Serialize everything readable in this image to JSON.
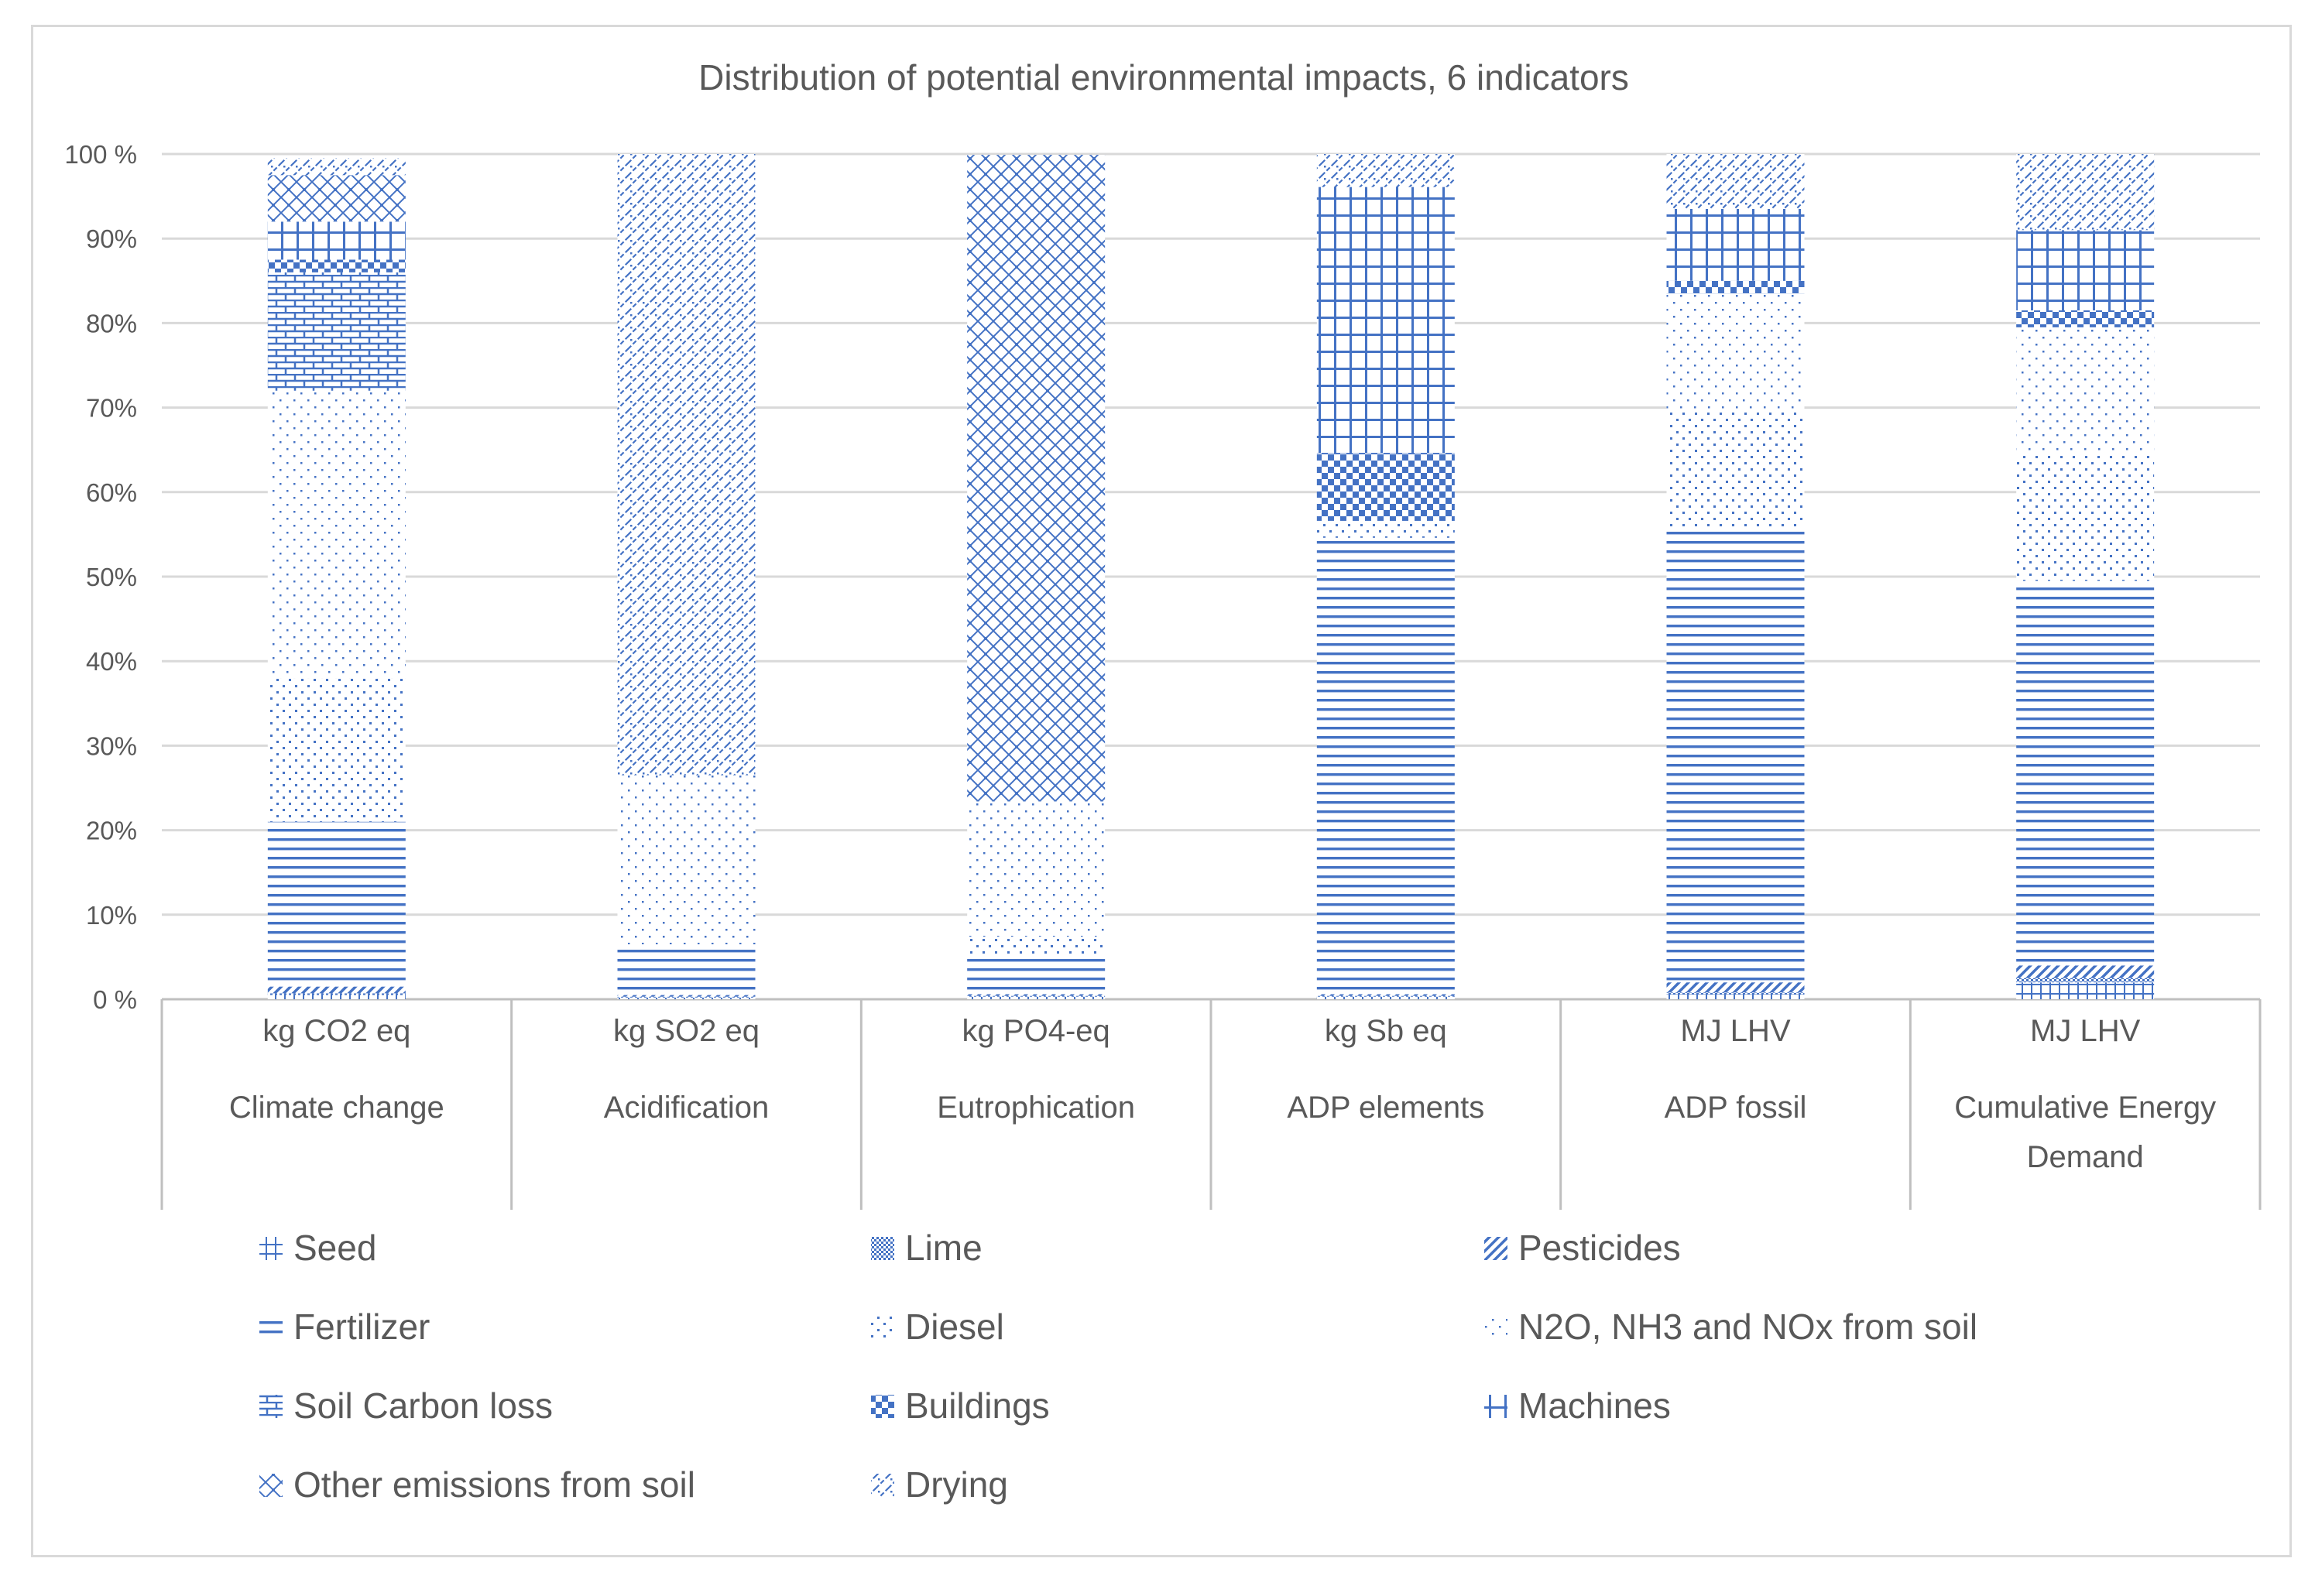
{
  "colors": {
    "pattern": "#4472c4",
    "grid": "#d9d9d9",
    "axis": "#bfbfbf",
    "text": "#595959",
    "background": "#ffffff"
  },
  "legend": {
    "items": [
      {
        "name": "Seed",
        "pattern": "grid-small"
      },
      {
        "name": "Lime",
        "pattern": "dense-dots"
      },
      {
        "name": "Pesticides",
        "pattern": "wide-diagonal"
      },
      {
        "name": "Fertilizer",
        "pattern": "horizontal-lines"
      },
      {
        "name": "Diesel",
        "pattern": "dots"
      },
      {
        "name": "N2O, NH3 and NOx from soil",
        "pattern": "sparse-dots"
      },
      {
        "name": "Soil Carbon loss",
        "pattern": "brick"
      },
      {
        "name": "Buildings",
        "pattern": "checker"
      },
      {
        "name": "Machines",
        "pattern": "large-grid"
      },
      {
        "name": "Other emissions from soil",
        "pattern": "diamond"
      },
      {
        "name": "Drying",
        "pattern": "dashed-diagonal"
      }
    ]
  },
  "chart_data": {
    "type": "bar",
    "stacked": true,
    "percent": true,
    "title": "Distribution of potential environmental impacts, 6 indicators",
    "xlabel": "",
    "ylabel": "",
    "ylim": [
      0,
      100
    ],
    "yticks": [
      "0 %",
      "10%",
      "20%",
      "30%",
      "40%",
      "50%",
      "60%",
      "70%",
      "80%",
      "90%",
      "100 %"
    ],
    "categories": [
      {
        "unit": "kg CO2 eq",
        "label": [
          "Climate change"
        ]
      },
      {
        "unit": "kg SO2 eq",
        "label": [
          "Acidification"
        ]
      },
      {
        "unit": "kg PO4-eq",
        "label": [
          "Eutrophication"
        ]
      },
      {
        "unit": "kg Sb eq",
        "label": [
          "ADP elements"
        ]
      },
      {
        "unit": "MJ LHV",
        "label": [
          "ADP fossil"
        ]
      },
      {
        "unit": "MJ LHV",
        "label": [
          "Cumulative Energy",
          "Demand"
        ]
      }
    ],
    "series": [
      {
        "name": "Seed",
        "values": [
          0.5,
          0.2,
          0.3,
          0.3,
          0.6,
          2.0
        ]
      },
      {
        "name": "Lime",
        "values": [
          0.2,
          0.1,
          0.1,
          0.1,
          0.2,
          0.5
        ]
      },
      {
        "name": "Pesticides",
        "values": [
          0.8,
          0.2,
          0.2,
          0.2,
          1.2,
          1.5
        ]
      },
      {
        "name": "Fertilizer",
        "values": [
          19.5,
          6.0,
          4.8,
          54.0,
          53.5,
          45.5
        ]
      },
      {
        "name": "Diesel",
        "values": [
          17.0,
          0.0,
          2.0,
          2.0,
          14.0,
          15.0
        ]
      },
      {
        "name": "N2O, NH3 and NOx from soil",
        "values": [
          34.0,
          20.0,
          16.0,
          0.0,
          14.0,
          15.0
        ]
      },
      {
        "name": "Soil Carbon loss",
        "values": [
          14.0,
          0.0,
          0.0,
          0.0,
          0.0,
          0.0
        ]
      },
      {
        "name": "Buildings",
        "values": [
          1.5,
          0.0,
          0.0,
          8.0,
          1.5,
          2.0
        ]
      },
      {
        "name": "Machines",
        "values": [
          4.5,
          0.0,
          0.0,
          31.5,
          8.5,
          9.5
        ]
      },
      {
        "name": "Other emissions from soil",
        "values": [
          5.5,
          0.0,
          76.5,
          0.0,
          0.0,
          0.0
        ]
      },
      {
        "name": "Drying",
        "values": [
          2.0,
          73.5,
          0.0,
          3.9,
          6.5,
          9.0
        ]
      }
    ]
  }
}
